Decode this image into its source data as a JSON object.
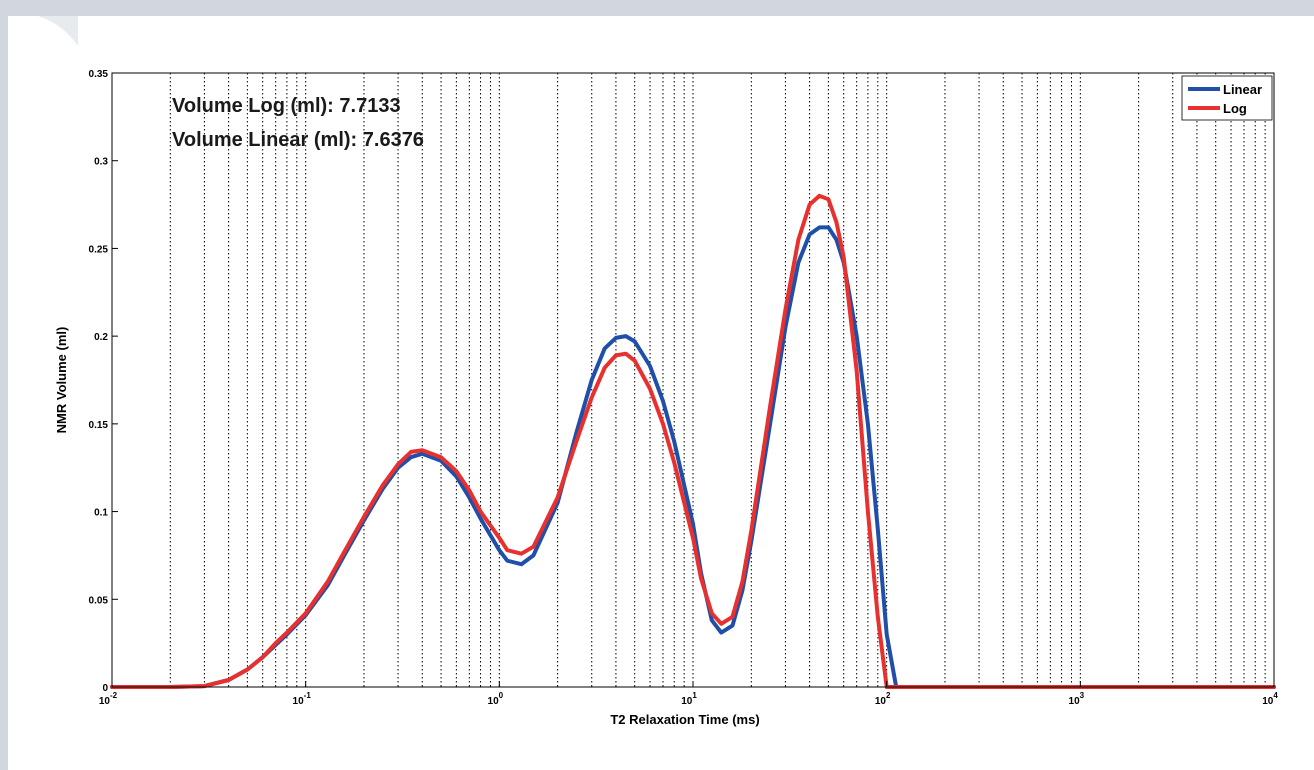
{
  "chart_data": {
    "type": "line",
    "xscale": "log",
    "xlim": [
      0.01,
      10000
    ],
    "ylim": [
      0,
      0.35
    ],
    "xlabel": "T2 Relaxation Time (ms)",
    "ylabel": "NMR Volume (ml)",
    "x_ticks": [
      {
        "base": "10",
        "exp": "-2"
      },
      {
        "base": "10",
        "exp": "-1"
      },
      {
        "base": "10",
        "exp": "0"
      },
      {
        "base": "10",
        "exp": "1"
      },
      {
        "base": "10",
        "exp": "2"
      },
      {
        "base": "10",
        "exp": "3"
      },
      {
        "base": "10",
        "exp": "4"
      }
    ],
    "y_ticks": [
      "0",
      "0.05",
      "0.1",
      "0.15",
      "0.2",
      "0.25",
      "0.3",
      "0.35"
    ],
    "grid": "vertical dotted at decade subdivisions",
    "legend_position": "top-right",
    "annotations": [
      "Volume Log (ml): 7.7133",
      "Volume Linear (ml): 7.6376"
    ],
    "series": [
      {
        "name": "Linear",
        "color": "#1f4fa8",
        "x": [
          0.01,
          0.02,
          0.03,
          0.04,
          0.05,
          0.06,
          0.07,
          0.08,
          0.1,
          0.13,
          0.16,
          0.2,
          0.25,
          0.3,
          0.35,
          0.4,
          0.5,
          0.6,
          0.7,
          0.8,
          1.0,
          1.1,
          1.3,
          1.5,
          2,
          2.5,
          3,
          3.5,
          4,
          4.5,
          5,
          6,
          7,
          8,
          10,
          11,
          12.5,
          14,
          16,
          18,
          20,
          25,
          30,
          35,
          40,
          45,
          50,
          55,
          60,
          70,
          80,
          90,
          100,
          112,
          1000,
          10000
        ],
        "y": [
          0,
          0,
          0.0005,
          0.004,
          0.01,
          0.017,
          0.024,
          0.03,
          0.041,
          0.058,
          0.076,
          0.095,
          0.113,
          0.125,
          0.131,
          0.133,
          0.129,
          0.12,
          0.108,
          0.096,
          0.078,
          0.072,
          0.07,
          0.075,
          0.105,
          0.145,
          0.175,
          0.193,
          0.199,
          0.2,
          0.197,
          0.183,
          0.163,
          0.14,
          0.093,
          0.065,
          0.038,
          0.031,
          0.035,
          0.055,
          0.083,
          0.15,
          0.205,
          0.242,
          0.258,
          0.262,
          0.262,
          0.255,
          0.242,
          0.2,
          0.15,
          0.09,
          0.03,
          0,
          0,
          0
        ]
      },
      {
        "name": "Log",
        "color": "#e8302f",
        "x": [
          0.01,
          0.02,
          0.03,
          0.04,
          0.05,
          0.06,
          0.07,
          0.08,
          0.1,
          0.13,
          0.16,
          0.2,
          0.25,
          0.3,
          0.35,
          0.4,
          0.5,
          0.6,
          0.7,
          0.8,
          1.0,
          1.1,
          1.3,
          1.5,
          2,
          2.5,
          3,
          3.5,
          4,
          4.5,
          5,
          6,
          7,
          8,
          10,
          11,
          12.5,
          14,
          16,
          18,
          20,
          25,
          30,
          35,
          40,
          45,
          50,
          55,
          60,
          70,
          80,
          90,
          100,
          1000,
          10000
        ],
        "y": [
          0,
          0,
          0.0005,
          0.004,
          0.01,
          0.017,
          0.025,
          0.031,
          0.042,
          0.06,
          0.078,
          0.097,
          0.115,
          0.127,
          0.134,
          0.135,
          0.131,
          0.123,
          0.112,
          0.1,
          0.085,
          0.078,
          0.076,
          0.08,
          0.108,
          0.14,
          0.165,
          0.182,
          0.189,
          0.19,
          0.186,
          0.17,
          0.15,
          0.128,
          0.085,
          0.062,
          0.042,
          0.036,
          0.04,
          0.06,
          0.089,
          0.16,
          0.215,
          0.255,
          0.275,
          0.28,
          0.278,
          0.265,
          0.245,
          0.18,
          0.1,
          0.04,
          0,
          0,
          0
        ]
      }
    ]
  }
}
